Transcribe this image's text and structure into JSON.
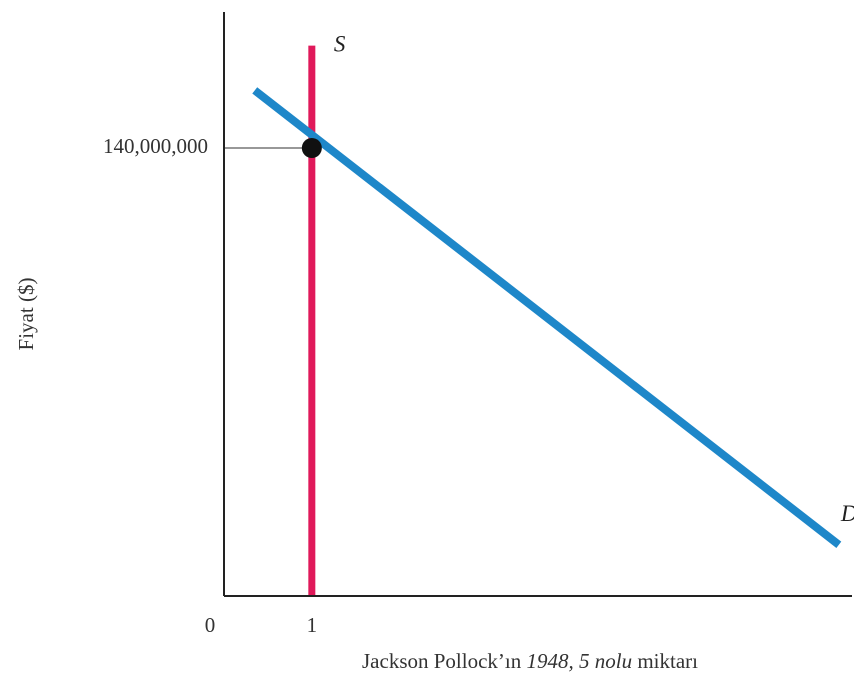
{
  "chart_data": {
    "type": "line",
    "xlabel": {
      "part1": "Jackson Pollock’ın ",
      "part2_italic": "1948, 5 nolu",
      "part3": " miktarı"
    },
    "ylabel": "Fiyat ($)",
    "origin_label": "0",
    "x_ticks": [
      {
        "value": 1,
        "label": "1"
      }
    ],
    "y_ticks": [
      {
        "value": 140000000,
        "label": "140,000,000"
      }
    ],
    "xlim": [
      0,
      7.15
    ],
    "ylim": [
      0,
      182500000
    ],
    "series": [
      {
        "name": "S",
        "kind": "supply",
        "color": "#e0195a",
        "points": [
          [
            1,
            0
          ],
          [
            1,
            172000000
          ]
        ]
      },
      {
        "name": "D",
        "kind": "demand",
        "color": "#1e87c9",
        "points": [
          [
            0.35,
            158000000
          ],
          [
            7.0,
            16000000
          ]
        ]
      }
    ],
    "equilibrium": {
      "x": 1,
      "y": 140000000,
      "color": "#111111"
    },
    "guide_color": "#777777",
    "axis_color": "#222222"
  }
}
